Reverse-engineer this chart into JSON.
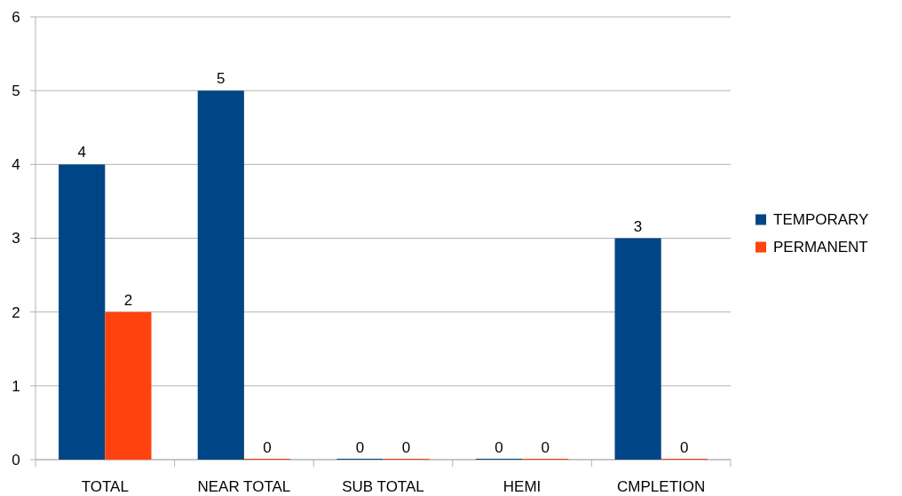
{
  "chart_data": {
    "type": "bar",
    "categories": [
      "TOTAL",
      "NEAR TOTAL",
      "SUB TOTAL",
      "HEMI",
      "CMPLETION"
    ],
    "series": [
      {
        "name": "TEMPORARY",
        "color": "#004586",
        "values": [
          4,
          5,
          0,
          0,
          3
        ]
      },
      {
        "name": "PERMANENT",
        "color": "#ff420e",
        "values": [
          2,
          0,
          0,
          0,
          0
        ]
      }
    ],
    "ylim": [
      0,
      6
    ],
    "yticks": [
      0,
      1,
      2,
      3,
      4,
      5,
      6
    ],
    "grid": "y",
    "legend": "right",
    "data_labels": true
  }
}
